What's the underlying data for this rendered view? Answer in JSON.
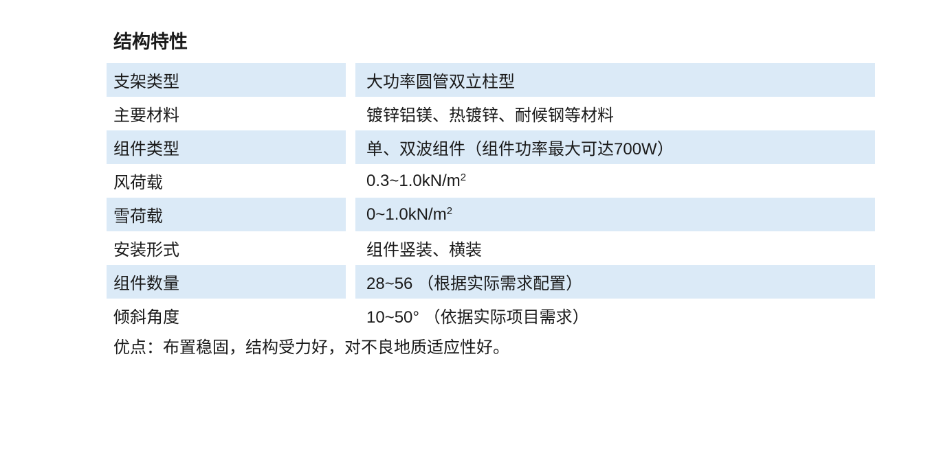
{
  "title": "结构特性",
  "colors": {
    "row_stripe": "#dbeaf7",
    "text": "#1a1a1a",
    "background": "#ffffff"
  },
  "table": {
    "rows": [
      {
        "label": "支架类型",
        "value": "大功率圆管双立柱型"
      },
      {
        "label": "主要材料",
        "value": "镀锌铝镁、热镀锌、耐候钢等材料"
      },
      {
        "label": "组件类型",
        "value": "单、双波组件（组件功率最大可达700W）"
      },
      {
        "label": "风荷载",
        "value": "0.3~1.0kN/m",
        "sup": "2"
      },
      {
        "label": "雪荷载",
        "value": "0~1.0kN/m",
        "sup": "2"
      },
      {
        "label": "安装形式",
        "value": "组件竖装、横装"
      },
      {
        "label": "组件数量",
        "value": "28~56 （根据实际需求配置）"
      },
      {
        "label": "倾斜角度",
        "value": "10~50° （依据实际项目需求）"
      }
    ]
  },
  "footer": "优点：布置稳固，结构受力好，对不良地质适应性好。"
}
